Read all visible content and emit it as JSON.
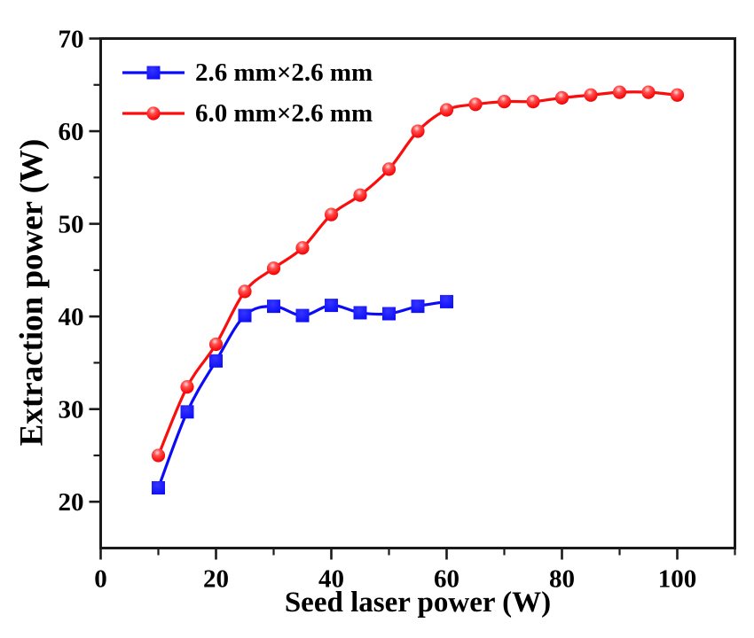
{
  "chart_data": {
    "type": "line",
    "xlabel": "Seed laser power (W)",
    "ylabel": "Extraction power (W)",
    "xlim": [
      0,
      110
    ],
    "ylim": [
      15,
      70
    ],
    "x_major_ticks": [
      0,
      20,
      40,
      60,
      80,
      100
    ],
    "x_minor_ticks": [
      10,
      30,
      50,
      70,
      90,
      110
    ],
    "y_major_ticks": [
      20,
      30,
      40,
      50,
      60,
      70
    ],
    "y_minor_ticks": [
      25,
      35,
      45,
      55,
      65
    ],
    "grid": false,
    "legend_position": "top-left",
    "axis_color": "#1a1a1a",
    "series": [
      {
        "name": "2.6 mm×2.6 mm",
        "color": "#0b0bf7",
        "marker": "square",
        "x": [
          10,
          15,
          20,
          25,
          30,
          35,
          40,
          45,
          50,
          55,
          60
        ],
        "values": [
          21.5,
          29.7,
          35.2,
          40.1,
          41.1,
          40.1,
          41.2,
          40.4,
          40.3,
          41.1,
          41.6
        ]
      },
      {
        "name": "6.0 mm×2.6 mm",
        "color": "#f90d0d",
        "marker": "circle",
        "x": [
          10,
          15,
          20,
          25,
          30,
          35,
          40,
          45,
          50,
          55,
          60,
          65,
          70,
          75,
          80,
          85,
          90,
          95,
          100
        ],
        "values": [
          25.0,
          32.4,
          37.0,
          42.7,
          45.2,
          47.4,
          51.0,
          53.1,
          55.9,
          60.0,
          62.3,
          62.9,
          63.2,
          63.2,
          63.6,
          63.9,
          64.2,
          64.2,
          63.9
        ]
      }
    ]
  }
}
